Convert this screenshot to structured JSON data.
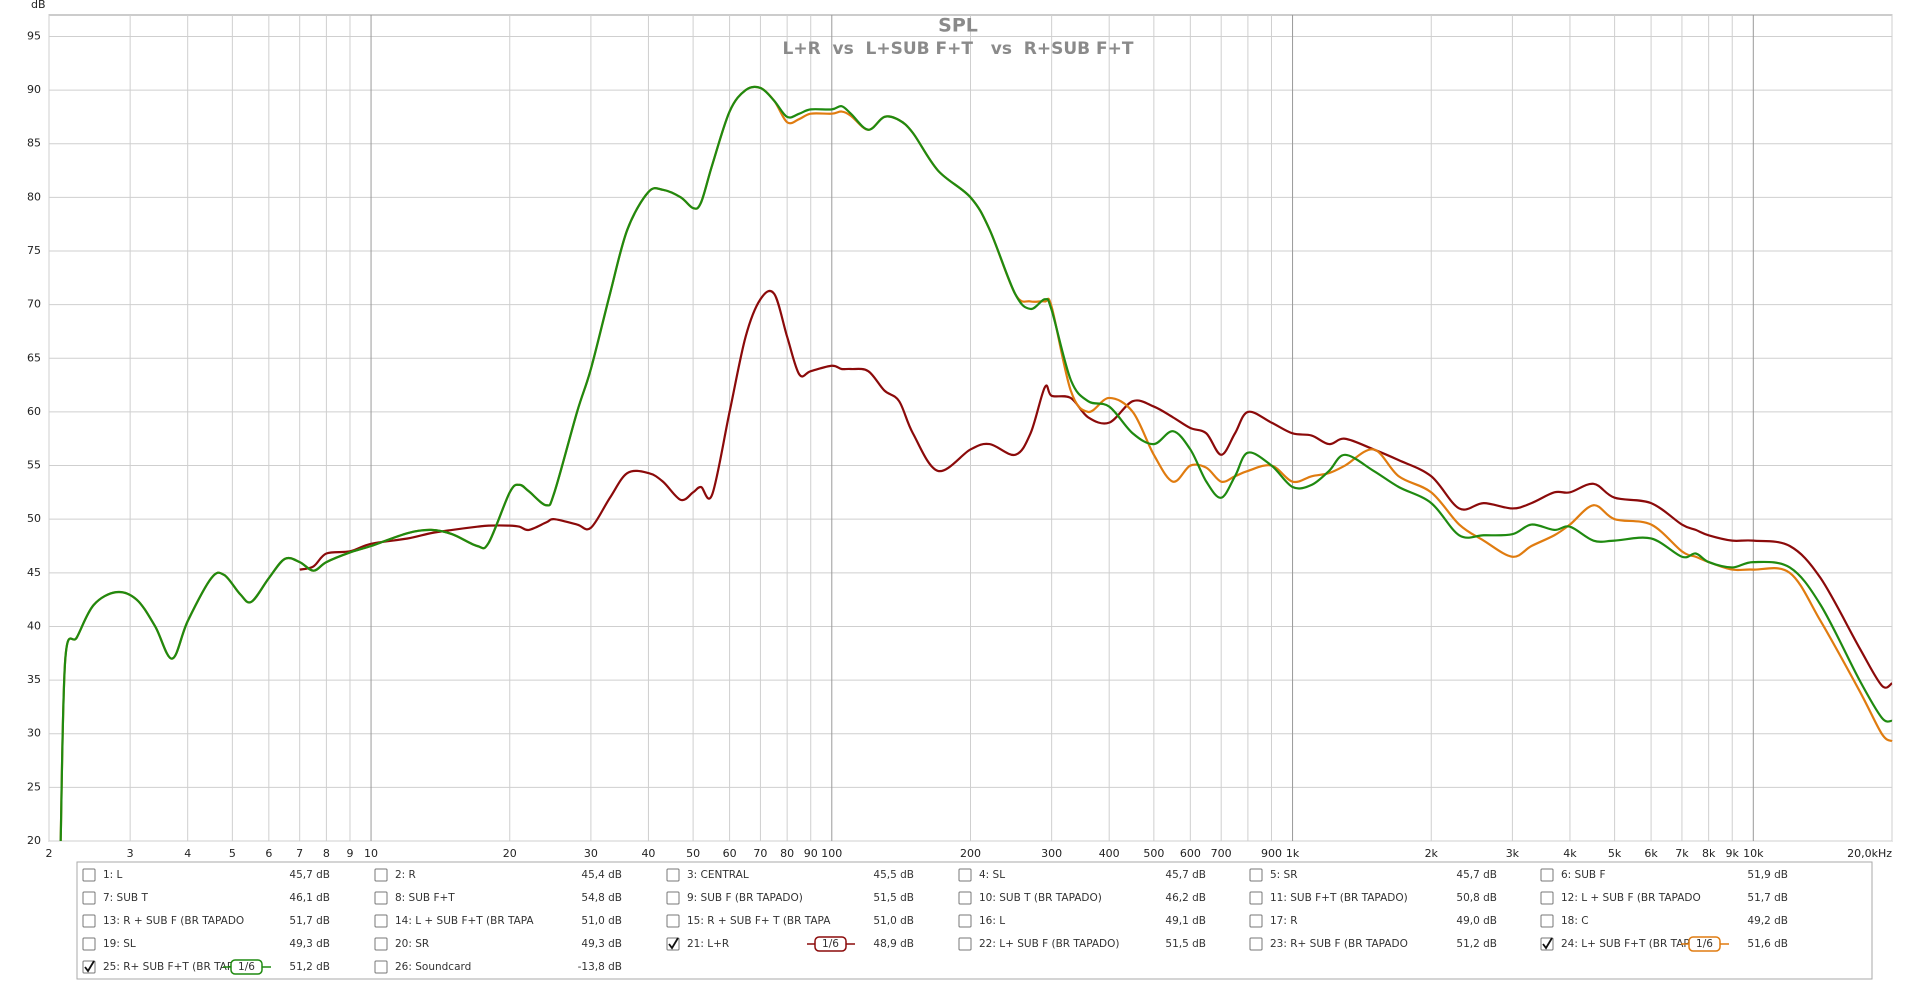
{
  "chart_data": {
    "type": "line",
    "title": "SPL",
    "subtitle": "L+R  vs  L+SUB F+T   vs  R+SUB F+T",
    "y_label": "dB",
    "xscale": "log",
    "xlim": [
      2,
      20000
    ],
    "ylim": [
      20,
      97
    ],
    "grid": true,
    "xticks": [
      2,
      3,
      4,
      5,
      6,
      7,
      8,
      9,
      10,
      20,
      30,
      40,
      50,
      60,
      70,
      80,
      90,
      100,
      200,
      300,
      400,
      500,
      600,
      700,
      {
        "value": 800,
        "label": null
      },
      900,
      {
        "value": 1000,
        "label": "1k"
      },
      {
        "value": 2000,
        "label": "2k"
      },
      {
        "value": 3000,
        "label": "3k"
      },
      {
        "value": 4000,
        "label": "4k"
      },
      {
        "value": 5000,
        "label": "5k"
      },
      {
        "value": 6000,
        "label": "6k"
      },
      {
        "value": 7000,
        "label": "7k"
      },
      {
        "value": 8000,
        "label": "8k"
      },
      {
        "value": 9000,
        "label": "9k"
      },
      {
        "value": 10000,
        "label": "10k"
      },
      {
        "value": 20000,
        "label": "20,0kHz"
      }
    ],
    "yticks": [
      20,
      25,
      30,
      35,
      40,
      45,
      50,
      55,
      60,
      65,
      70,
      75,
      80,
      85,
      90,
      95
    ],
    "x": [
      2.12,
      2.17,
      2.3,
      2.5,
      2.8,
      3.1,
      3.4,
      3.7,
      4,
      4.5,
      4.8,
      5.2,
      5.5,
      6,
      6.5,
      7,
      7.5,
      8,
      9,
      10,
      12,
      13.5,
      15,
      17,
      18,
      20,
      21,
      22,
      24,
      25,
      28,
      30,
      33,
      36,
      40,
      43,
      47,
      50,
      52,
      55,
      60,
      65,
      70,
      75,
      80,
      85,
      90,
      100,
      105,
      110,
      120,
      130,
      140,
      150,
      170,
      200,
      220,
      250,
      270,
      290,
      300,
      330,
      360,
      400,
      450,
      500,
      550,
      600,
      650,
      700,
      750,
      800,
      900,
      1000,
      1100,
      1200,
      1300,
      1500,
      1700,
      2000,
      2300,
      2600,
      3000,
      3300,
      3700,
      4000,
      4500,
      5000,
      6000,
      7000,
      7500,
      8000,
      9000,
      10000,
      12000,
      14000,
      17000,
      19000,
      20000
    ],
    "series": [
      {
        "name": "21: L+R",
        "color": "#8b0a0a",
        "values": [
          null,
          null,
          null,
          null,
          null,
          null,
          null,
          null,
          null,
          null,
          null,
          null,
          null,
          null,
          null,
          45.3,
          45.6,
          46.8,
          47,
          47.7,
          48.2,
          48.7,
          49,
          49.3,
          49.4,
          49.4,
          49.3,
          49,
          49.7,
          50,
          49.5,
          49.2,
          52,
          54.3,
          54.3,
          53.5,
          51.8,
          52.5,
          53,
          52.3,
          60,
          67,
          70.5,
          71,
          67,
          63.5,
          63.8,
          64.3,
          64,
          64,
          63.8,
          62,
          61,
          58,
          54.5,
          56.5,
          57,
          56,
          58,
          62.3,
          61.5,
          61.3,
          59.5,
          59,
          61,
          60.5,
          59.5,
          58.5,
          58,
          56,
          58,
          60,
          59,
          58,
          57.8,
          57,
          57.5,
          56.5,
          55.5,
          54,
          51,
          51.5,
          51,
          51.5,
          52.5,
          52.5,
          53.3,
          52,
          51.5,
          49.5,
          49,
          48.5,
          48,
          48,
          47.5,
          44.5,
          38,
          34.5,
          34.7
        ]
      },
      {
        "name": "24: L+ SUB F+T (BR TAPAI",
        "color": "#e07c10",
        "values": [
          20,
          37,
          39,
          42,
          43.2,
          42.5,
          40,
          37,
          40.5,
          44.5,
          44.8,
          43,
          42.3,
          44.5,
          46.3,
          46,
          45.2,
          46,
          46.9,
          47.5,
          48.7,
          49,
          48.6,
          47.5,
          47.8,
          52.5,
          53.2,
          52.6,
          51.3,
          52.5,
          60,
          64,
          71,
          77,
          80.5,
          80.7,
          80,
          79,
          79.5,
          83,
          88,
          90,
          90.2,
          89,
          87,
          87.3,
          87.8,
          87.8,
          88,
          87.6,
          86.3,
          87.5,
          87.2,
          86,
          82.5,
          80,
          77,
          71,
          70.3,
          70.3,
          69.8,
          62,
          60,
          61.3,
          60,
          56,
          53.5,
          55,
          54.8,
          53.5,
          54,
          54.5,
          55,
          53.5,
          54,
          54.3,
          55,
          56.5,
          54,
          52.5,
          49.5,
          48,
          46.5,
          47.5,
          48.5,
          49.5,
          51.3,
          50,
          49.5,
          47,
          46.5,
          46,
          45.3,
          45.3,
          45,
          40.5,
          34,
          30,
          29.3
        ]
      },
      {
        "name": "25: R+ SUB F+T (BR TAPAI",
        "color": "#1f8a10",
        "values": [
          20,
          37,
          39,
          42,
          43.2,
          42.5,
          40,
          37,
          40.5,
          44.5,
          44.8,
          43,
          42.3,
          44.5,
          46.3,
          46,
          45.2,
          46,
          46.9,
          47.5,
          48.7,
          49,
          48.6,
          47.5,
          47.8,
          52.5,
          53.2,
          52.6,
          51.3,
          52.5,
          60,
          64,
          71,
          77,
          80.5,
          80.7,
          80,
          79,
          79.5,
          83,
          88,
          90,
          90.2,
          89,
          87.5,
          87.8,
          88.2,
          88.2,
          88.5,
          87.8,
          86.3,
          87.5,
          87.2,
          86,
          82.5,
          80,
          77,
          71,
          69.6,
          70.5,
          69.5,
          63,
          61,
          60.5,
          58,
          57,
          58.2,
          56.5,
          53.5,
          52,
          54,
          56.2,
          55,
          53,
          53.2,
          54.5,
          56,
          54.5,
          53,
          51.5,
          48.5,
          48.5,
          48.6,
          49.5,
          49,
          49.3,
          48,
          48,
          48.2,
          46.5,
          46.8,
          46,
          45.5,
          46,
          45.5,
          42,
          35,
          31.5,
          31.2
        ]
      }
    ]
  },
  "traces": [
    {
      "label": "1: L",
      "level": "45,7 dB",
      "color": "#a83030",
      "checked": false
    },
    {
      "label": "2: R",
      "level": "45,4 dB",
      "color": "#2a8a2a",
      "checked": false
    },
    {
      "label": "3: CENTRAL",
      "level": "45,5 dB",
      "color": "#4a4ab0",
      "checked": false
    },
    {
      "label": "4: SL",
      "level": "45,7 dB",
      "color": "#d08020",
      "checked": false
    },
    {
      "label": "5: SR",
      "level": "45,7 dB",
      "color": "#2a8a2a",
      "checked": false
    },
    {
      "label": "6: SUB F",
      "level": "51,9 dB",
      "color": "#2a70a0",
      "checked": false
    },
    {
      "label": "7: SUB T",
      "level": "46,1 dB",
      "color": "#b06020",
      "checked": false
    },
    {
      "label": "8: SUB F+T",
      "level": "54,8 dB",
      "color": "#2a8090",
      "checked": false
    },
    {
      "label": "9: SUB F (BR TAPADO)",
      "level": "51,5 dB",
      "color": "#8030a0",
      "checked": false
    },
    {
      "label": "10: SUB T (BR TAPADO)",
      "level": "46,2 dB",
      "color": "#8040b0",
      "checked": false
    },
    {
      "label": "11: SUB F+T (BR TAPADO)",
      "level": "50,8 dB",
      "color": "#a02020",
      "checked": false
    },
    {
      "label": "12: L + SUB F (BR TAPADO",
      "level": "51,7 dB",
      "color": "#207060",
      "checked": false
    },
    {
      "label": "13: R + SUB F (BR TAPADO",
      "level": "51,7 dB",
      "color": "#4040a0",
      "checked": false
    },
    {
      "label": "14: L + SUB F+T (BR TAPA",
      "level": "51,0 dB",
      "color": "#d08020",
      "checked": false
    },
    {
      "label": "15: R + SUB F+ T (BR TAPA",
      "level": "51,0 dB",
      "color": "#2a9a2a",
      "checked": false
    },
    {
      "label": "16: L",
      "level": "49,1 dB",
      "color": "#3060a0",
      "checked": false
    },
    {
      "label": "17: R",
      "level": "49,0 dB",
      "color": "#a03030",
      "checked": false
    },
    {
      "label": "18: C",
      "level": "49,2 dB",
      "color": "#208080",
      "checked": false
    },
    {
      "label": "19: SL",
      "level": "49,3 dB",
      "color": "#7030a0",
      "checked": false
    },
    {
      "label": "20: SR",
      "level": "49,3 dB",
      "color": "#9030a0",
      "checked": false
    },
    {
      "level": "48,9 dB",
      "checked": true,
      "smoothing": "1/6"
    },
    {
      "label": "22: L+ SUB F (BR TAPADO)",
      "level": "51,5 dB",
      "color": "#2a8a2a",
      "checked": false
    },
    {
      "label": "23: R+ SUB F (BR TAPADO",
      "level": "51,2 dB",
      "color": "#3050a0",
      "checked": false
    },
    {
      "level": "51,6 dB",
      "checked": true,
      "smoothing": "1/6"
    },
    {
      "level": "51,2 dB",
      "checked": true,
      "smoothing": "1/6"
    },
    {
      "label": "26: Soundcard",
      "level": "-13,8 dB",
      "color": "#3070b0",
      "checked": false
    }
  ]
}
